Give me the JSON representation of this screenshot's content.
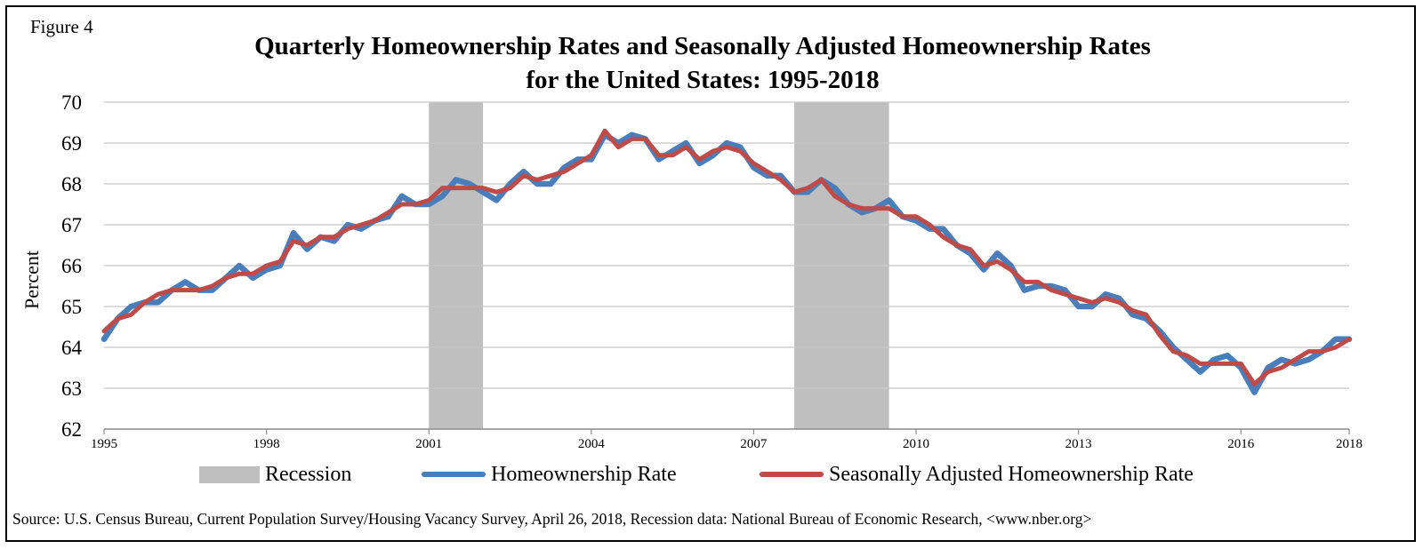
{
  "figure_label": "Figure 4",
  "title_line1": "Quarterly Homeownership Rates and Seasonally Adjusted Homeownership Rates",
  "title_line2": "for the United States: 1995-2018",
  "ylabel": "Percent",
  "source": "Source: U.S. Census Bureau, Current Population Survey/Housing Vacancy Survey, April 26, 2018, Recession data: National Bureau of Economic Research, <www.nber.org>",
  "legend": {
    "recession": "Recession",
    "rate": "Homeownership Rate",
    "sa_rate": "Seasonally Adjusted Homeownership Rate"
  },
  "colors": {
    "rate": "#4a7ebb",
    "sa_rate": "#be4b48",
    "recession": "#bfbfbf",
    "grid": "#c8c8c8"
  },
  "chart_data": {
    "type": "line",
    "title": "Quarterly Homeownership Rates and Seasonally Adjusted Homeownership Rates for the United States: 1995-2018",
    "xlabel": "",
    "ylabel": "Percent",
    "ylim": [
      62,
      70
    ],
    "xlim": [
      1995,
      2018
    ],
    "y_ticks": [
      "70",
      "69",
      "68",
      "67",
      "66",
      "65",
      "64",
      "63",
      "62"
    ],
    "x_ticks": [
      "1995",
      "1998",
      "2001",
      "2004",
      "2007",
      "2010",
      "2013",
      "2016",
      "2018"
    ],
    "grid": "horizontal",
    "legend_position": "bottom",
    "recessions": [
      [
        2001.0,
        2002.0
      ],
      [
        2007.75,
        2009.5
      ]
    ],
    "series": [
      {
        "name": "Homeownership Rate",
        "values": [
          64.2,
          64.7,
          65.0,
          65.1,
          65.1,
          65.4,
          65.6,
          65.4,
          65.4,
          65.7,
          66.0,
          65.7,
          65.9,
          66.0,
          66.8,
          66.4,
          66.7,
          66.6,
          67.0,
          66.9,
          67.1,
          67.2,
          67.7,
          67.5,
          67.5,
          67.7,
          68.1,
          68.0,
          67.8,
          67.6,
          68.0,
          68.3,
          68.0,
          68.0,
          68.4,
          68.6,
          68.6,
          69.2,
          69.0,
          69.2,
          69.1,
          68.6,
          68.8,
          69.0,
          68.5,
          68.7,
          69.0,
          68.9,
          68.4,
          68.2,
          68.2,
          67.8,
          67.8,
          68.1,
          67.9,
          67.5,
          67.3,
          67.4,
          67.6,
          67.2,
          67.1,
          66.9,
          66.9,
          66.5,
          66.3,
          65.9,
          66.3,
          66.0,
          65.4,
          65.5,
          65.5,
          65.4,
          65.0,
          65.0,
          65.3,
          65.2,
          64.8,
          64.7,
          64.4,
          64.0,
          63.7,
          63.4,
          63.7,
          63.8,
          63.5,
          62.9,
          63.5,
          63.7,
          63.6,
          63.7,
          63.9,
          64.2,
          64.2
        ]
      },
      {
        "name": "Seasonally Adjusted Homeownership Rate",
        "values": [
          64.4,
          64.7,
          64.8,
          65.1,
          65.3,
          65.4,
          65.4,
          65.4,
          65.5,
          65.7,
          65.8,
          65.8,
          66.0,
          66.1,
          66.6,
          66.5,
          66.7,
          66.7,
          66.9,
          67.0,
          67.1,
          67.3,
          67.5,
          67.5,
          67.6,
          67.9,
          67.9,
          67.9,
          67.9,
          67.8,
          67.9,
          68.2,
          68.1,
          68.2,
          68.3,
          68.5,
          68.7,
          69.3,
          68.9,
          69.1,
          69.1,
          68.7,
          68.7,
          68.9,
          68.6,
          68.8,
          68.9,
          68.8,
          68.5,
          68.3,
          68.1,
          67.8,
          67.9,
          68.1,
          67.7,
          67.5,
          67.4,
          67.4,
          67.4,
          67.2,
          67.2,
          67.0,
          66.7,
          66.5,
          66.4,
          66.0,
          66.1,
          65.9,
          65.6,
          65.6,
          65.4,
          65.3,
          65.2,
          65.1,
          65.2,
          65.1,
          64.9,
          64.8,
          64.3,
          63.9,
          63.8,
          63.6,
          63.6,
          63.6,
          63.6,
          63.1,
          63.4,
          63.5,
          63.7,
          63.9,
          63.9,
          64.0,
          64.2
        ]
      }
    ]
  }
}
